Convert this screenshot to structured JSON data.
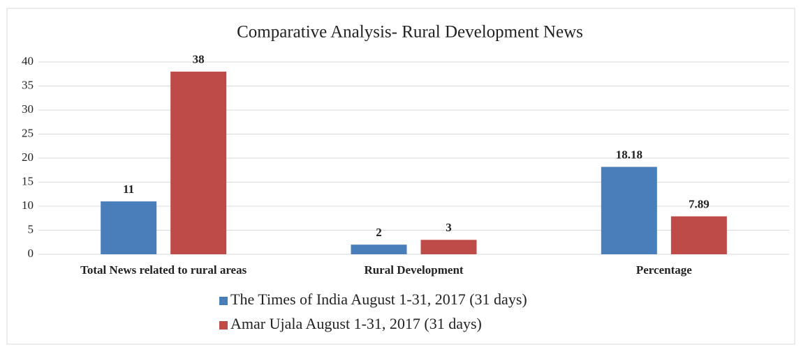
{
  "chart_data": {
    "type": "bar",
    "title": "Comparative Analysis- Rural Development News",
    "categories": [
      "Total News related to rural areas",
      "Rural Development",
      "Percentage"
    ],
    "series": [
      {
        "name": "The Times of India August 1-31, 2017 (31 days)",
        "color": "#4a7ebb",
        "values": [
          11,
          2,
          18.18
        ]
      },
      {
        "name": "Amar Ujala August 1-31, 2017 (31 days)",
        "color": "#be4b48",
        "values": [
          38,
          3,
          7.89
        ]
      }
    ],
    "ylim": [
      0,
      40
    ],
    "yticks": [
      0,
      5,
      10,
      15,
      20,
      25,
      30,
      35,
      40
    ],
    "grid": true,
    "legend": "bottom"
  }
}
